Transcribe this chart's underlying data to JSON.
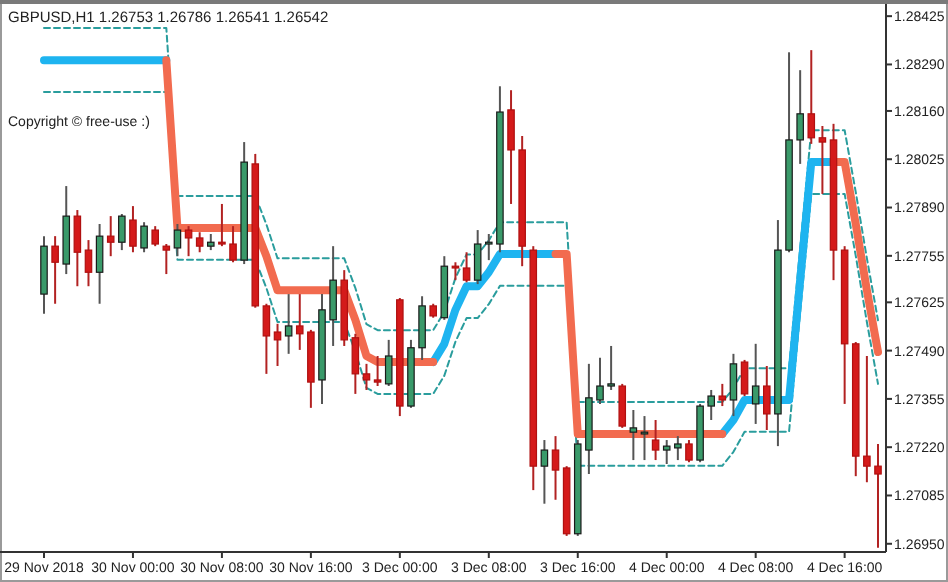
{
  "chart_data": {
    "type": "candlestick",
    "title": "GBPUSD,H1  1.26753 1.26786 1.26541 1.26542",
    "annotations": [
      "Copyright © free-use :)"
    ],
    "categories": [
      "29 Nov 2018",
      null,
      null,
      null,
      null,
      null,
      null,
      null,
      "30 Nov 00:00",
      null,
      null,
      null,
      null,
      null,
      null,
      null,
      "30 Nov 08:00",
      null,
      null,
      null,
      null,
      null,
      null,
      null,
      "30 Nov 16:00",
      null,
      null,
      null,
      null,
      null,
      null,
      null,
      "3 Dec 00:00",
      null,
      null,
      null,
      null,
      null,
      null,
      null,
      "3 Dec 08:00",
      null,
      null,
      null,
      null,
      null,
      null,
      null,
      "3 Dec 16:00",
      null,
      null,
      null,
      null,
      null,
      null,
      null,
      "4 Dec 00:00",
      null,
      null,
      null,
      null,
      null,
      null,
      null,
      "4 Dec 08:00",
      null,
      null,
      null,
      null,
      null,
      null,
      null,
      "4 Dec 16:00",
      null,
      null,
      null
    ],
    "ylim": [
      1.26927,
      1.28459
    ],
    "yticks": [
      1.28425,
      {
        "value": 1.2829,
        "label": "1.28290"
      },
      {
        "value": 1.2816,
        "label": "1.28160"
      },
      1.28025,
      {
        "value": 1.2789,
        "label": "1.27890"
      },
      1.27755,
      1.27625,
      {
        "value": 1.2749,
        "label": "1.27490"
      },
      1.27355,
      {
        "value": 1.2722,
        "label": "1.27220"
      },
      1.27085,
      {
        "value": 1.2695,
        "label": "1.26950"
      }
    ],
    "ohlc": [
      [
        1.27648,
        1.2781,
        1.27593,
        1.27782
      ],
      [
        1.27782,
        1.2781,
        1.27621,
        1.27737
      ],
      [
        1.27732,
        1.2795,
        1.27704,
        1.27866
      ],
      [
        1.27866,
        1.27883,
        1.2767,
        1.27765
      ],
      [
        1.27771,
        1.27799,
        1.2767,
        1.27709
      ],
      [
        1.27709,
        1.27844,
        1.27621,
        1.2781
      ],
      [
        1.2781,
        1.27866,
        1.27754,
        1.27793
      ],
      [
        1.27793,
        1.27872,
        1.27771,
        1.27866
      ],
      [
        1.27855,
        1.27894,
        1.27765,
        1.27782
      ],
      [
        1.27777,
        1.27849,
        1.27765,
        1.27838
      ],
      [
        1.27827,
        1.27838,
        1.27782,
        1.27788
      ],
      [
        1.27782,
        1.27788,
        1.27704,
        1.27771
      ],
      [
        1.27777,
        1.27844,
        1.27754,
        1.27827
      ],
      [
        1.27827,
        1.27838,
        1.27754,
        1.27805
      ],
      [
        1.27805,
        1.27821,
        1.27765,
        1.27782
      ],
      [
        1.27782,
        1.27816,
        1.27771,
        1.27793
      ],
      [
        1.27793,
        1.279,
        1.27782,
        1.27788
      ],
      [
        1.27788,
        1.27838,
        1.27737,
        1.27743
      ],
      [
        1.27743,
        1.28073,
        1.27732,
        1.28017
      ],
      [
        1.28012,
        1.2804,
        1.2761,
        1.27615
      ],
      [
        1.27615,
        1.27621,
        1.27425,
        1.27531
      ],
      [
        1.27542,
        1.27565,
        1.27447,
        1.2752
      ],
      [
        1.27531,
        1.27648,
        1.27481,
        1.27559
      ],
      [
        1.27559,
        1.27648,
        1.27492,
        1.27537
      ],
      [
        1.27542,
        1.27548,
        1.2733,
        1.27402
      ],
      [
        1.27408,
        1.27648,
        1.27341,
        1.27604
      ],
      [
        1.27576,
        1.27782,
        1.27503,
        1.27687
      ],
      [
        1.27687,
        1.27715,
        1.27503,
        1.2752
      ],
      [
        1.27526,
        1.27537,
        1.27369,
        1.27425
      ],
      [
        1.27425,
        1.27453,
        1.2738,
        1.27408
      ],
      [
        1.27408,
        1.27475,
        1.27391,
        1.27402
      ],
      [
        1.27397,
        1.2752,
        1.27391,
        1.27475
      ],
      [
        1.27632,
        1.27637,
        1.27307,
        1.27335
      ],
      [
        1.27335,
        1.2752,
        1.2733,
        1.27498
      ],
      [
        1.27498,
        1.27642,
        1.27464,
        1.27615
      ],
      [
        1.27615,
        1.27621,
        1.27582,
        1.27587
      ],
      [
        1.27582,
        1.27754,
        1.27576,
        1.27726
      ],
      [
        1.27726,
        1.27737,
        1.27687,
        1.27721
      ],
      [
        1.27721,
        1.27765,
        1.27681,
        1.27687
      ],
      [
        1.27687,
        1.27827,
        1.27676,
        1.27788
      ],
      [
        1.27788,
        1.27816,
        1.27743,
        1.27793
      ],
      [
        1.27788,
        1.28229,
        1.27765,
        1.28157
      ],
      [
        1.28163,
        1.28218,
        1.279,
        1.28051
      ],
      [
        1.28051,
        1.2809,
        1.27726,
        1.27782
      ],
      [
        1.27771,
        1.27782,
        1.271,
        1.27167
      ],
      [
        1.27167,
        1.2724,
        1.27062,
        1.27212
      ],
      [
        1.27212,
        1.27251,
        1.27073,
        1.27156
      ],
      [
        1.27162,
        1.27167,
        1.26972,
        1.26978
      ],
      [
        1.26978,
        1.2724,
        1.26972,
        1.27229
      ],
      [
        1.27212,
        1.27453,
        1.27145,
        1.27358
      ],
      [
        1.27352,
        1.2747,
        1.27341,
        1.27391
      ],
      [
        1.27391,
        1.27503,
        1.2738,
        1.27397
      ],
      [
        1.27391,
        1.27397,
        1.27274,
        1.27279
      ],
      [
        1.27262,
        1.27324,
        1.27184,
        1.27274
      ],
      [
        1.27257,
        1.27307,
        1.27184,
        1.27262
      ],
      [
        1.2724,
        1.27296,
        1.27184,
        1.27212
      ],
      [
        1.27212,
        1.2724,
        1.27173,
        1.27223
      ],
      [
        1.27218,
        1.27251,
        1.27184,
        1.27229
      ],
      [
        1.27229,
        1.2724,
        1.27178,
        1.27184
      ],
      [
        1.27184,
        1.27341,
        1.27178,
        1.27335
      ],
      [
        1.27335,
        1.2738,
        1.27296,
        1.27363
      ],
      [
        1.27363,
        1.27397,
        1.27335,
        1.27352
      ],
      [
        1.27352,
        1.27481,
        1.27307,
        1.27453
      ],
      [
        1.27458,
        1.27464,
        1.27363,
        1.27369
      ],
      [
        1.27341,
        1.27509,
        1.27285,
        1.27391
      ],
      [
        1.27391,
        1.27447,
        1.27268,
        1.27313
      ],
      [
        1.27313,
        1.27855,
        1.27223,
        1.27771
      ],
      [
        1.27771,
        1.28324,
        1.27765,
        1.28079
      ],
      [
        1.28079,
        1.28274,
        1.28012,
        1.28152
      ],
      [
        1.28152,
        1.2833,
        1.28068,
        1.28085
      ],
      [
        1.28085,
        1.28118,
        1.27928,
        1.28073
      ],
      [
        1.28079,
        1.28124,
        1.27687,
        1.27771
      ],
      [
        1.27771,
        1.27782,
        1.27341,
        1.27509
      ],
      [
        1.27509,
        1.27514,
        1.27139,
        1.27195
      ],
      [
        1.27195,
        1.27475,
        1.27122,
        1.27167
      ],
      [
        1.27167,
        1.27229,
        1.26939,
        1.27145
      ]
    ],
    "series": [
      {
        "type": "line",
        "color": "#2a9d9d",
        "line_style": "dashed",
        "values": [
          1.28392,
          1.28392,
          1.28392,
          1.28392,
          1.28392,
          1.28392,
          1.28392,
          1.28392,
          1.28392,
          1.28392,
          1.28392,
          1.28392,
          1.27922,
          1.27922,
          1.27922,
          1.27922,
          1.27922,
          1.27922,
          1.27922,
          1.27922,
          1.27843,
          1.27748,
          1.27748,
          1.27748,
          1.27748,
          1.27748,
          1.27748,
          1.27748,
          1.27665,
          1.27564,
          1.27547,
          1.27547,
          1.27547,
          1.27547,
          1.27547,
          1.27547,
          1.27598,
          1.27693,
          1.27759,
          1.27759,
          1.27798,
          1.27849,
          1.27849,
          1.27849,
          1.27849,
          1.27849,
          1.27849,
          1.27849,
          1.27346,
          1.27346,
          1.27346,
          1.27346,
          1.27346,
          1.27346,
          1.27346,
          1.27346,
          1.27346,
          1.27346,
          1.27346,
          1.27346,
          1.27346,
          1.27346,
          1.27385,
          1.27441,
          1.27441,
          1.27441,
          1.27441,
          1.27441,
          1.27776,
          1.28106,
          1.28106,
          1.28106,
          1.28106,
          1.27933,
          1.27748,
          1.27575
        ]
      },
      {
        "type": "line",
        "color": "#2a9d9d",
        "line_style": "dashed",
        "values": [
          1.28213,
          1.28213,
          1.28213,
          1.28213,
          1.28213,
          1.28213,
          1.28213,
          1.28213,
          1.28213,
          1.28213,
          1.28213,
          1.28213,
          1.27744,
          1.27744,
          1.27744,
          1.27744,
          1.27744,
          1.27744,
          1.27744,
          1.27744,
          1.27665,
          1.2757,
          1.2757,
          1.2757,
          1.2757,
          1.2757,
          1.2757,
          1.2757,
          1.27487,
          1.27386,
          1.27369,
          1.27369,
          1.27369,
          1.27369,
          1.27369,
          1.27369,
          1.2742,
          1.27515,
          1.27581,
          1.27581,
          1.2762,
          1.27671,
          1.27671,
          1.27671,
          1.27671,
          1.27671,
          1.27671,
          1.27671,
          1.27168,
          1.27168,
          1.27168,
          1.27168,
          1.27168,
          1.27168,
          1.27168,
          1.27168,
          1.27168,
          1.27168,
          1.27168,
          1.27168,
          1.27168,
          1.27168,
          1.27207,
          1.27263,
          1.27263,
          1.27263,
          1.27263,
          1.27263,
          1.27598,
          1.27928,
          1.27928,
          1.27928,
          1.27928,
          1.27755,
          1.2757,
          1.27397
        ]
      },
      {
        "type": "line",
        "color": "#1eb4f0",
        "line_style": "solid",
        "values": [
          1.28302,
          1.28302,
          1.28302,
          1.28302,
          1.28302,
          1.28302,
          1.28302,
          1.28302,
          1.28302,
          1.28302,
          1.28302,
          1.28302,
          null,
          null,
          null,
          null,
          null,
          null,
          null,
          null,
          null,
          null,
          null,
          null,
          null,
          null,
          null,
          null,
          null,
          null,
          null,
          null,
          null,
          null,
          null,
          1.27458,
          1.27509,
          1.27604,
          1.2767,
          1.2767,
          1.27709,
          1.2776,
          1.2776,
          1.2776,
          1.2776,
          1.2776,
          1.2776,
          null,
          null,
          null,
          null,
          null,
          null,
          null,
          null,
          null,
          null,
          null,
          null,
          null,
          null,
          1.27257,
          1.27296,
          1.27352,
          1.27352,
          1.27352,
          1.27352,
          1.27352,
          1.27687,
          1.28017,
          1.28017,
          1.28017,
          null,
          null,
          null,
          null
        ]
      },
      {
        "type": "line",
        "color": "#f26b4f",
        "line_style": "solid",
        "values": [
          null,
          null,
          null,
          null,
          null,
          null,
          null,
          null,
          null,
          null,
          null,
          1.28302,
          1.27833,
          1.27833,
          1.27833,
          1.27833,
          1.27833,
          1.27833,
          1.27833,
          1.27833,
          1.27754,
          1.27659,
          1.27659,
          1.27659,
          1.27659,
          1.27659,
          1.27659,
          1.27659,
          1.27576,
          1.27475,
          1.27458,
          1.27458,
          1.27458,
          1.27458,
          1.27458,
          1.27458,
          null,
          null,
          null,
          null,
          null,
          null,
          null,
          null,
          null,
          null,
          1.2776,
          1.2776,
          1.27257,
          1.27257,
          1.27257,
          1.27257,
          1.27257,
          1.27257,
          1.27257,
          1.27257,
          1.27257,
          1.27257,
          1.27257,
          1.27257,
          1.27257,
          1.27257,
          null,
          null,
          null,
          null,
          null,
          null,
          null,
          null,
          null,
          1.28017,
          1.28017,
          1.27844,
          1.27659,
          1.27486
        ]
      }
    ]
  }
}
